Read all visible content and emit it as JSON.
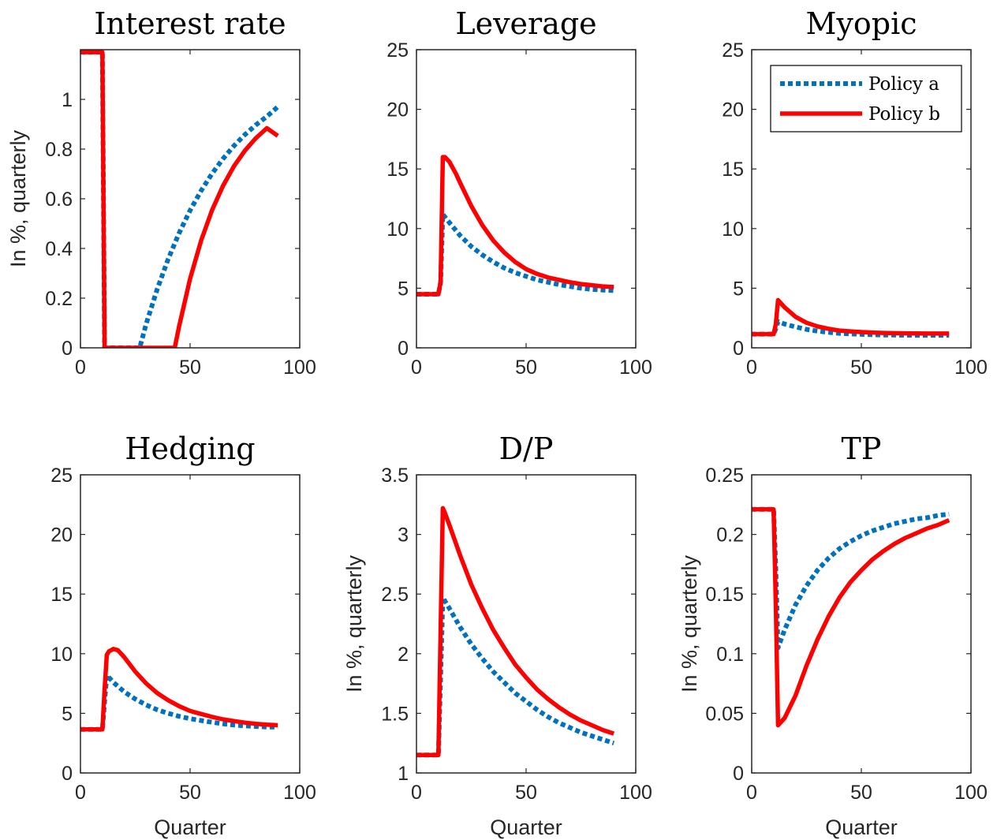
{
  "colors": {
    "policy_a": "#0072BD",
    "policy_b": "#FF0000",
    "axes": "#262626"
  },
  "legend": {
    "placement": "top-right",
    "panel": 2,
    "entries": [
      "Policy a",
      "Policy b"
    ]
  },
  "chart_data": [
    {
      "type": "line",
      "title": "Interest rate",
      "xlabel": "",
      "ylabel": "In %, quarterly",
      "xlim": [
        0,
        100
      ],
      "ylim": [
        0,
        1.2
      ],
      "xticks": [
        0,
        50,
        100
      ],
      "yticks": [
        0,
        0.2,
        0.4,
        0.6,
        0.8,
        1
      ],
      "series": [
        {
          "name": "Policy a",
          "x": [
            0,
            10,
            11,
            12,
            20,
            26,
            27,
            30,
            35,
            40,
            45,
            50,
            55,
            60,
            65,
            70,
            75,
            80,
            85,
            90
          ],
          "y": [
            1.19,
            1.19,
            0,
            0,
            0,
            0,
            0,
            0.097,
            0.236,
            0.357,
            0.462,
            0.553,
            0.632,
            0.701,
            0.761,
            0.813,
            0.858,
            0.897,
            0.931,
            0.97
          ]
        },
        {
          "name": "Policy b",
          "x": [
            0,
            10,
            11,
            12,
            20,
            30,
            40,
            43,
            45,
            50,
            55,
            60,
            65,
            70,
            75,
            80,
            85,
            90
          ],
          "y": [
            1.19,
            1.19,
            0,
            0,
            0,
            0,
            0,
            0,
            0.087,
            0.278,
            0.431,
            0.554,
            0.652,
            0.731,
            0.794,
            0.844,
            0.884,
            0.853
          ]
        }
      ]
    },
    {
      "type": "line",
      "title": "Leverage",
      "xlabel": "",
      "ylabel": "",
      "xlim": [
        0,
        100
      ],
      "ylim": [
        0,
        25
      ],
      "xticks": [
        0,
        50,
        100
      ],
      "yticks": [
        0,
        5,
        10,
        15,
        20,
        25
      ],
      "series": [
        {
          "name": "Policy a",
          "x": [
            0,
            10,
            11,
            12,
            15,
            20,
            25,
            30,
            35,
            40,
            45,
            50,
            55,
            60,
            65,
            70,
            75,
            80,
            85,
            90
          ],
          "y": [
            4.5,
            4.5,
            5.5,
            11.2,
            10.5,
            9.4,
            8.5,
            7.8,
            7.2,
            6.7,
            6.3,
            6.0,
            5.7,
            5.5,
            5.3,
            5.15,
            5.0,
            4.9,
            4.85,
            4.8
          ]
        },
        {
          "name": "Policy b",
          "x": [
            0,
            10,
            11,
            12,
            13,
            15,
            18,
            20,
            25,
            30,
            35,
            40,
            45,
            50,
            55,
            60,
            65,
            70,
            75,
            80,
            85,
            90
          ],
          "y": [
            4.5,
            4.5,
            5.5,
            16.0,
            16.0,
            15.6,
            14.6,
            13.8,
            11.9,
            10.3,
            9.0,
            8.0,
            7.2,
            6.6,
            6.2,
            5.9,
            5.7,
            5.5,
            5.35,
            5.25,
            5.15,
            5.1
          ]
        }
      ]
    },
    {
      "type": "line",
      "title": "Myopic",
      "xlabel": "",
      "ylabel": "",
      "xlim": [
        0,
        100
      ],
      "ylim": [
        0,
        25
      ],
      "xticks": [
        0,
        50,
        100
      ],
      "yticks": [
        0,
        5,
        10,
        15,
        20,
        25
      ],
      "series": [
        {
          "name": "Policy a",
          "x": [
            0,
            10,
            11,
            12,
            15,
            20,
            25,
            30,
            35,
            40,
            45,
            50,
            55,
            60,
            65,
            70,
            75,
            80,
            85,
            90
          ],
          "y": [
            1.15,
            1.15,
            1.6,
            2.2,
            2.0,
            1.75,
            1.55,
            1.4,
            1.3,
            1.22,
            1.17,
            1.13,
            1.1,
            1.08,
            1.07,
            1.06,
            1.05,
            1.05,
            1.05,
            1.05
          ]
        },
        {
          "name": "Policy b",
          "x": [
            0,
            10,
            11,
            12,
            15,
            20,
            25,
            30,
            35,
            40,
            45,
            50,
            55,
            60,
            65,
            70,
            75,
            80,
            85,
            90
          ],
          "y": [
            1.15,
            1.15,
            2.0,
            4.0,
            3.4,
            2.6,
            2.1,
            1.8,
            1.6,
            1.45,
            1.38,
            1.32,
            1.28,
            1.25,
            1.23,
            1.22,
            1.21,
            1.2,
            1.2,
            1.2
          ]
        }
      ]
    },
    {
      "type": "line",
      "title": "Hedging",
      "xlabel": "Quarter",
      "ylabel": "",
      "xlim": [
        0,
        100
      ],
      "ylim": [
        0,
        25
      ],
      "xticks": [
        0,
        50,
        100
      ],
      "yticks": [
        0,
        5,
        10,
        15,
        20,
        25
      ],
      "series": [
        {
          "name": "Policy a",
          "x": [
            0,
            10,
            11,
            12,
            15,
            20,
            25,
            30,
            35,
            40,
            45,
            50,
            55,
            60,
            65,
            70,
            75,
            80,
            85,
            90
          ],
          "y": [
            3.65,
            3.65,
            6.0,
            8.2,
            7.6,
            6.8,
            6.2,
            5.7,
            5.3,
            5.0,
            4.75,
            4.55,
            4.4,
            4.25,
            4.12,
            4.02,
            3.95,
            3.9,
            3.85,
            3.85
          ]
        },
        {
          "name": "Policy b",
          "x": [
            0,
            10,
            11,
            12,
            13,
            15,
            17,
            20,
            25,
            30,
            35,
            40,
            45,
            50,
            55,
            60,
            65,
            70,
            75,
            80,
            85,
            90
          ],
          "y": [
            3.65,
            3.65,
            7.0,
            9.9,
            10.2,
            10.4,
            10.3,
            9.7,
            8.5,
            7.5,
            6.7,
            6.1,
            5.6,
            5.2,
            4.95,
            4.7,
            4.5,
            4.35,
            4.22,
            4.12,
            4.05,
            4.0
          ]
        }
      ]
    },
    {
      "type": "line",
      "title": "D/P",
      "xlabel": "Quarter",
      "ylabel": "In %, quarterly",
      "xlim": [
        0,
        100
      ],
      "ylim": [
        1,
        3.5
      ],
      "xticks": [
        0,
        50,
        100
      ],
      "yticks": [
        1,
        1.5,
        2,
        2.5,
        3,
        3.5
      ],
      "series": [
        {
          "name": "Policy a",
          "x": [
            0,
            10,
            11,
            12,
            15,
            20,
            25,
            30,
            35,
            40,
            45,
            50,
            55,
            60,
            65,
            70,
            75,
            80,
            85,
            90
          ],
          "y": [
            1.15,
            1.15,
            1.8,
            2.47,
            2.38,
            2.22,
            2.08,
            1.96,
            1.85,
            1.76,
            1.67,
            1.6,
            1.53,
            1.47,
            1.42,
            1.38,
            1.34,
            1.31,
            1.28,
            1.25
          ]
        },
        {
          "name": "Policy b",
          "x": [
            0,
            10,
            11,
            12,
            13,
            15,
            20,
            25,
            30,
            35,
            40,
            45,
            50,
            55,
            60,
            65,
            70,
            75,
            80,
            85,
            90
          ],
          "y": [
            1.15,
            1.15,
            2.2,
            3.22,
            3.18,
            3.08,
            2.82,
            2.58,
            2.38,
            2.2,
            2.05,
            1.91,
            1.8,
            1.7,
            1.62,
            1.55,
            1.49,
            1.44,
            1.4,
            1.36,
            1.33
          ]
        }
      ]
    },
    {
      "type": "line",
      "title": "TP",
      "xlabel": "Quarter",
      "ylabel": "In %, quarterly",
      "xlim": [
        0,
        100
      ],
      "ylim": [
        0,
        0.25
      ],
      "xticks": [
        0,
        50,
        100
      ],
      "yticks": [
        0,
        0.05,
        0.1,
        0.15,
        0.2,
        0.25
      ],
      "series": [
        {
          "name": "Policy a",
          "x": [
            0,
            10,
            11,
            12,
            15,
            20,
            25,
            30,
            35,
            40,
            45,
            50,
            55,
            60,
            65,
            70,
            75,
            80,
            85,
            90
          ],
          "y": [
            0.221,
            0.221,
            0.17,
            0.105,
            0.12,
            0.141,
            0.157,
            0.17,
            0.18,
            0.188,
            0.194,
            0.199,
            0.203,
            0.206,
            0.209,
            0.211,
            0.213,
            0.214,
            0.216,
            0.217
          ]
        },
        {
          "name": "Policy b",
          "x": [
            0,
            10,
            11,
            12,
            15,
            20,
            25,
            30,
            35,
            40,
            45,
            50,
            55,
            60,
            65,
            70,
            75,
            80,
            85,
            90
          ],
          "y": [
            0.221,
            0.221,
            0.14,
            0.04,
            0.046,
            0.065,
            0.09,
            0.112,
            0.131,
            0.147,
            0.16,
            0.17,
            0.179,
            0.186,
            0.192,
            0.197,
            0.201,
            0.205,
            0.208,
            0.212
          ]
        }
      ]
    }
  ]
}
